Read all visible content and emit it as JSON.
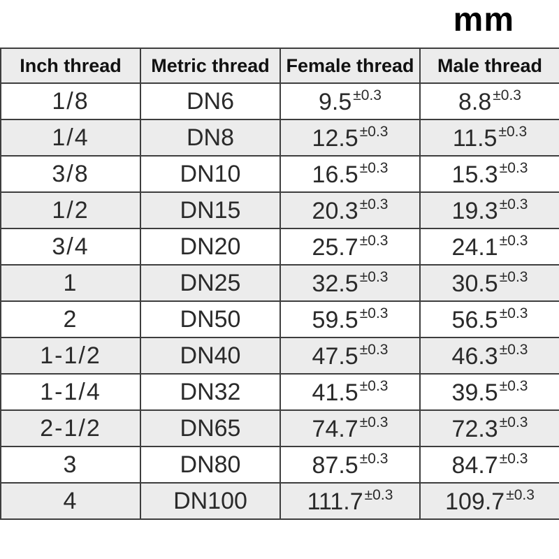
{
  "page": {
    "unit_label": "mm"
  },
  "colors": {
    "stripe_bg": "#ececec",
    "header_bg": "#ececec",
    "border": "#3e3e3e",
    "text": "#2a2a2a"
  },
  "table": {
    "columns": [
      "Inch thread",
      "Metric thread",
      "Female thread",
      "Male thread"
    ],
    "tolerance": "±0.3",
    "rows": [
      {
        "inch": "1/8",
        "metric": "DN6",
        "female": "9.5",
        "male": "8.8"
      },
      {
        "inch": "1/4",
        "metric": "DN8",
        "female": "12.5",
        "male": "11.5"
      },
      {
        "inch": "3/8",
        "metric": "DN10",
        "female": "16.5",
        "male": "15.3"
      },
      {
        "inch": "1/2",
        "metric": "DN15",
        "female": "20.3",
        "male": "19.3"
      },
      {
        "inch": "3/4",
        "metric": "DN20",
        "female": "25.7",
        "male": "24.1"
      },
      {
        "inch": "1",
        "metric": "DN25",
        "female": "32.5",
        "male": "30.5"
      },
      {
        "inch": "2",
        "metric": "DN50",
        "female": "59.5",
        "male": "56.5"
      },
      {
        "inch": "1-1/2",
        "metric": "DN40",
        "female": "47.5",
        "male": "46.3"
      },
      {
        "inch": "1-1/4",
        "metric": "DN32",
        "female": "41.5",
        "male": "39.5"
      },
      {
        "inch": "2-1/2",
        "metric": "DN65",
        "female": "74.7",
        "male": "72.3"
      },
      {
        "inch": "3",
        "metric": "DN80",
        "female": "87.5",
        "male": "84.7"
      },
      {
        "inch": "4",
        "metric": "DN100",
        "female": "111.7",
        "male": "109.7"
      }
    ]
  }
}
